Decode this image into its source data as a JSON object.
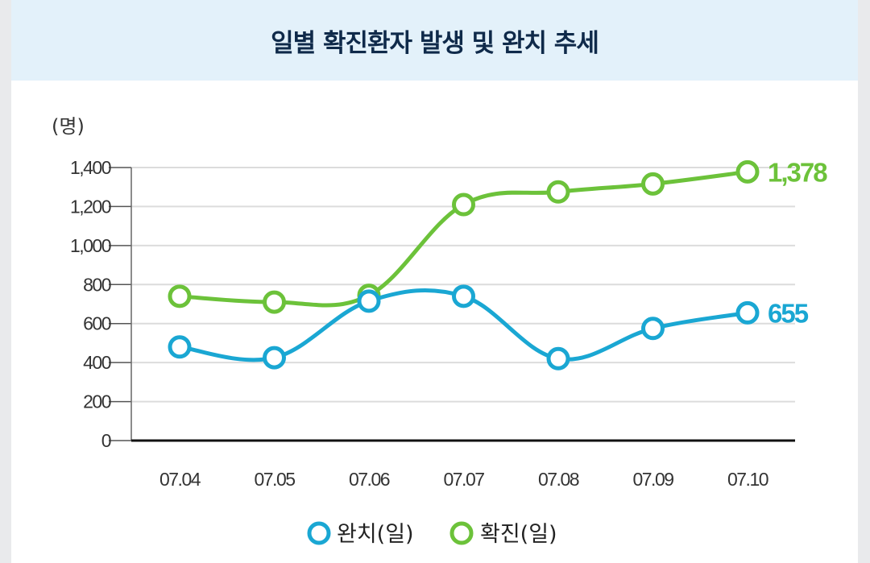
{
  "header": {
    "title": "일별 확진환자 발생 및 완치 추세"
  },
  "colors": {
    "recovered": "#1aa7d3",
    "confirmed": "#6cc23a",
    "header_bg": "#e3f1fa"
  },
  "chart_data": {
    "type": "line",
    "title": "일별 확진환자 발생 및 완치 추세",
    "ylabel": "(명)",
    "xlabel": "",
    "ylim": [
      0,
      1400
    ],
    "y_ticks": [
      "0",
      "200",
      "400",
      "600",
      "800",
      "1,000",
      "1,200",
      "1,400"
    ],
    "y_tick_values": [
      0,
      200,
      400,
      600,
      800,
      1000,
      1200,
      1400
    ],
    "categories": [
      "07.04",
      "07.05",
      "07.06",
      "07.07",
      "07.08",
      "07.09",
      "07.10"
    ],
    "grid": true,
    "legend": "bottom-center",
    "series": [
      {
        "name": "완치(일)",
        "key": "recovered",
        "values": [
          480,
          425,
          715,
          740,
          420,
          575,
          655
        ],
        "end_label": "655"
      },
      {
        "name": "확진(일)",
        "key": "confirmed",
        "values": [
          740,
          710,
          745,
          1210,
          1275,
          1316,
          1378
        ],
        "end_label": "1,378"
      }
    ]
  }
}
